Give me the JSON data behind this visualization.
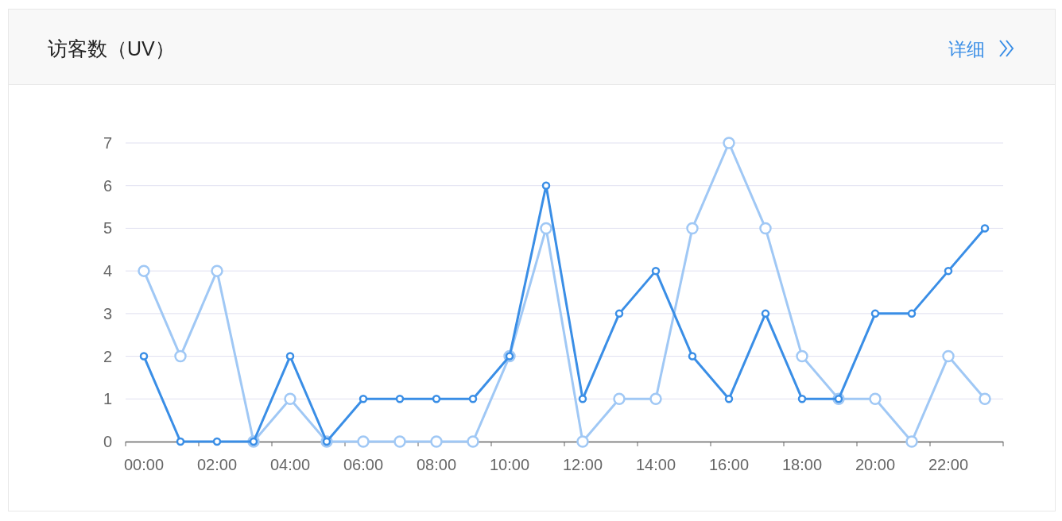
{
  "chart_data": {
    "type": "line",
    "title": "访客数（UV）",
    "annotations": [
      "详细"
    ],
    "categories": [
      "00:00",
      null,
      "02:00",
      null,
      "04:00",
      null,
      "06:00",
      null,
      "08:00",
      null,
      "10:00",
      null,
      "12:00",
      null,
      "14:00",
      null,
      "16:00",
      null,
      "18:00",
      null,
      "20:00",
      null,
      "22:00",
      null
    ],
    "series": [
      {
        "color": "#a0c8f5",
        "values": [
          4,
          2,
          4,
          0,
          1,
          0,
          0,
          0,
          0,
          0,
          2,
          5,
          0,
          1,
          1,
          5,
          7,
          5,
          2,
          1,
          1,
          0,
          2,
          1
        ]
      },
      {
        "color": "#3a8ee6",
        "values": [
          2,
          0,
          0,
          0,
          2,
          0,
          1,
          1,
          1,
          1,
          2,
          6,
          1,
          3,
          4,
          2,
          1,
          3,
          1,
          1,
          3,
          3,
          4,
          5
        ]
      }
    ],
    "ylim": [
      0,
      7
    ],
    "yticks": [
      0,
      1,
      2,
      3,
      4,
      5,
      6,
      7
    ],
    "grid": "y",
    "marker": "circle",
    "line_style": "solid"
  }
}
